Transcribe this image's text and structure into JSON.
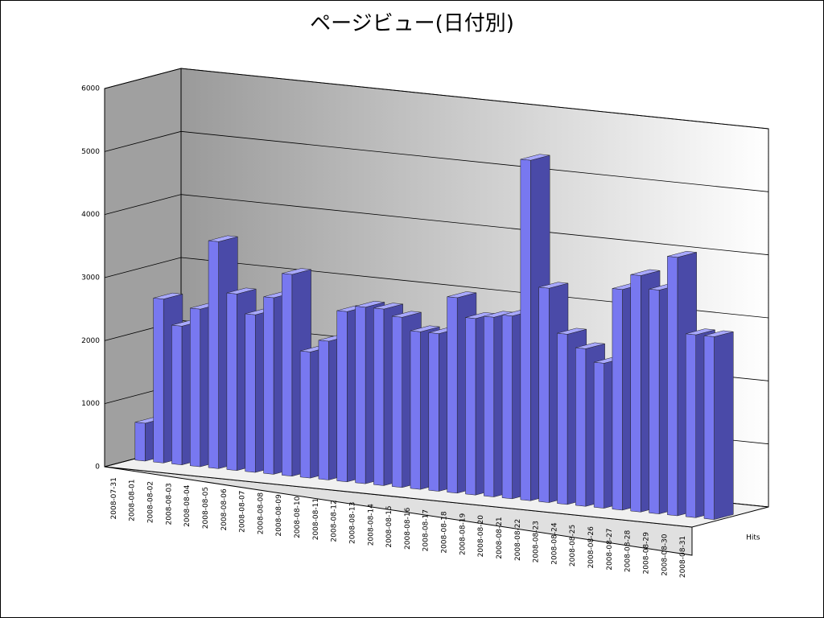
{
  "chart_data": {
    "type": "bar3d",
    "title": "ページビュー(日付別)",
    "categories": [
      "2008-07-31",
      "2008-08-01",
      "2008-08-02",
      "2008-08-03",
      "2008-08-04",
      "2008-08-05",
      "2008-08-06",
      "2008-08-07",
      "2008-08-08",
      "2008-08-09",
      "2008-08-10",
      "2008-08-11",
      "2008-08-12",
      "2008-08-13",
      "2008-08-14",
      "2008-08-15",
      "2008-08-16",
      "2008-08-17",
      "2008-08-18",
      "2008-08-19",
      "2008-08-20",
      "2008-08-21",
      "2008-08-22",
      "2008-08-23",
      "2008-08-24",
      "2008-08-25",
      "2008-08-26",
      "2008-08-27",
      "2008-08-28",
      "2008-08-29",
      "2008-08-30",
      "2008-08-31"
    ],
    "series": [
      {
        "name": "Hits",
        "color": "#7878f0",
        "values": [
          600,
          2600,
          2200,
          2500,
          3600,
          2800,
          2500,
          2800,
          3200,
          2000,
          2200,
          2700,
          2800,
          2800,
          2700,
          2500,
          2500,
          3100,
          2800,
          2850,
          2900,
          5400,
          3400,
          2700,
          2500,
          2300,
          3500,
          3750,
          3550,
          4100,
          2900,
          2900
        ]
      }
    ],
    "ylim": [
      0,
      6000
    ],
    "yticks": [
      0,
      1000,
      2000,
      3000,
      4000,
      5000,
      6000
    ],
    "grid": true
  }
}
